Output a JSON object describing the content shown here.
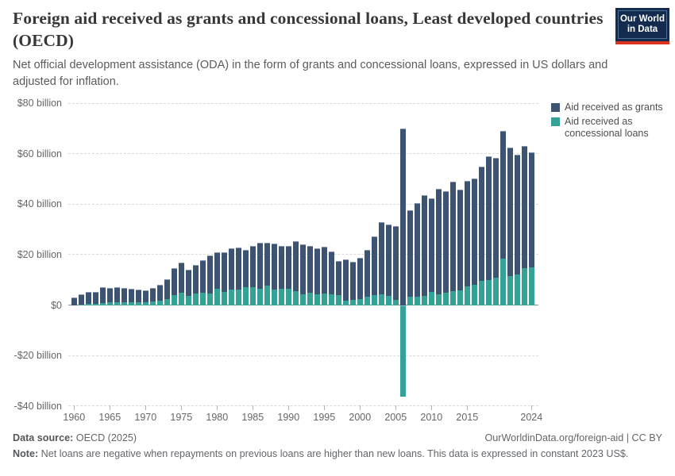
{
  "header": {
    "title": "Foreign aid received as grants and concessional loans, Least developed countries (OECD)",
    "subtitle": "Net official development assistance (ODA) in the form of grants and concessional loans, expressed in US dollars and adjusted for inflation.",
    "logo": {
      "line1": "Our World",
      "line2": "in Data",
      "bg_color": "#122b4e",
      "accent_color": "#dc3220"
    }
  },
  "legend": {
    "items": [
      {
        "label": "Aid received as grants",
        "color": "#3d5372"
      },
      {
        "label": "Aid received as concessional loans",
        "color": "#35a298"
      }
    ]
  },
  "chart_data": {
    "type": "bar",
    "stacked": true,
    "title": "Foreign aid received as grants and concessional loans, Least developed countries (OECD)",
    "unit": "US$ billion, constant 2023 prices",
    "ylim": [
      -40,
      80
    ],
    "grid": "horizontal-dashed",
    "legend_position": "top-right",
    "x": [
      1960,
      1961,
      1962,
      1963,
      1964,
      1965,
      1966,
      1967,
      1968,
      1969,
      1970,
      1971,
      1972,
      1973,
      1974,
      1975,
      1976,
      1977,
      1978,
      1979,
      1980,
      1981,
      1982,
      1983,
      1984,
      1985,
      1986,
      1987,
      1988,
      1989,
      1990,
      1991,
      1992,
      1993,
      1994,
      1995,
      1996,
      1997,
      1998,
      1999,
      2000,
      2001,
      2002,
      2003,
      2004,
      2005,
      2006,
      2007,
      2008,
      2009,
      2010,
      2011,
      2012,
      2013,
      2014,
      2015,
      2016,
      2017,
      2018,
      2019,
      2020,
      2021,
      2022,
      2023,
      2024
    ],
    "series": [
      {
        "name": "Aid received as grants",
        "color": "#3d5372",
        "values": [
          2.8,
          3.9,
          4.6,
          4.4,
          5.8,
          5.4,
          5.8,
          5.4,
          5.0,
          4.6,
          4.4,
          5.1,
          6.2,
          7.5,
          10.4,
          11.7,
          10.0,
          11.0,
          12.8,
          14.8,
          14.1,
          15.4,
          16.0,
          16.4,
          14.4,
          16.0,
          17.8,
          16.8,
          18.1,
          16.5,
          16.9,
          19.5,
          19.4,
          18.4,
          17.8,
          18.4,
          16.5,
          13.2,
          15.8,
          14.8,
          16.0,
          18.2,
          22.7,
          28.3,
          27.8,
          29.0,
          70.1,
          34.1,
          36.7,
          39.6,
          36.7,
          41.4,
          40.1,
          43.1,
          39.6,
          41.7,
          42.0,
          45.1,
          48.6,
          47.3,
          50.3,
          50.5,
          47.2,
          48.0,
          45.3
        ]
      },
      {
        "name": "Aid received as concessional loans",
        "color": "#35a298",
        "values": [
          0.2,
          0.4,
          0.7,
          0.8,
          1.2,
          1.3,
          1.4,
          1.5,
          1.5,
          1.4,
          1.4,
          1.6,
          1.9,
          2.8,
          4.3,
          5.2,
          3.9,
          5.0,
          5.1,
          4.9,
          6.9,
          5.6,
          6.4,
          6.4,
          7.4,
          7.5,
          6.9,
          7.9,
          6.4,
          6.9,
          6.7,
          5.8,
          4.6,
          5.2,
          4.6,
          4.8,
          4.6,
          4.4,
          2.2,
          2.3,
          2.7,
          3.7,
          4.4,
          4.6,
          4.0,
          2.3,
          -36.1,
          3.5,
          3.7,
          4.0,
          5.6,
          4.6,
          5.1,
          5.8,
          6.1,
          7.7,
          8.2,
          9.8,
          10.3,
          11.1,
          18.7,
          11.9,
          12.4,
          15.0,
          15.3
        ]
      }
    ],
    "y_ticks": [
      {
        "value": 80,
        "label": "$80 billion"
      },
      {
        "value": 60,
        "label": "$60 billion"
      },
      {
        "value": 40,
        "label": "$40 billion"
      },
      {
        "value": 20,
        "label": "$20 billion"
      },
      {
        "value": 0,
        "label": "$0"
      },
      {
        "value": -20,
        "label": "-$20 billion"
      },
      {
        "value": -40,
        "label": "-$40 billion"
      }
    ],
    "x_ticks": [
      1960,
      1965,
      1970,
      1975,
      1980,
      1985,
      1990,
      1995,
      2000,
      2005,
      2010,
      2015,
      2024
    ]
  },
  "footer": {
    "data_source_label": "Data source:",
    "data_source_value": " OECD (2025)",
    "link": "OurWorldinData.org/foreign-aid | CC BY",
    "note_label": "Note:",
    "note_value": " Net loans are negative when repayments on previous loans are higher than new loans. This data is expressed in constant 2023 US$."
  }
}
